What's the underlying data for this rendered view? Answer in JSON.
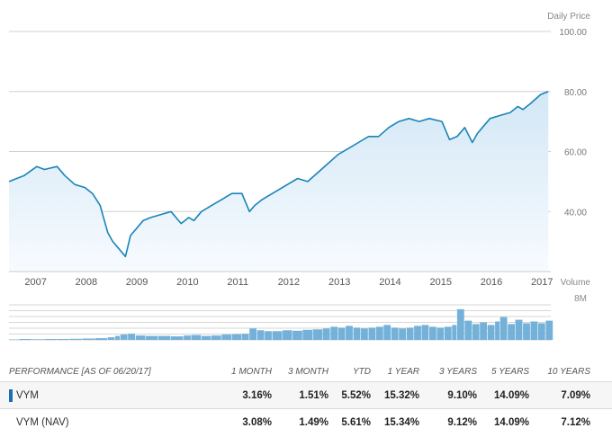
{
  "chart_data": {
    "type": "area",
    "price_label": "Daily Price",
    "price_ticks": [
      "100.00",
      "80.00",
      "60.00",
      "40.00"
    ],
    "x_ticks": [
      "2007",
      "2008",
      "2009",
      "2010",
      "2011",
      "2012",
      "2013",
      "2014",
      "2015",
      "2016",
      "2017"
    ],
    "volume_label": "Volume",
    "volume_tick": "8M",
    "ylim": [
      20,
      100
    ],
    "series": [
      {
        "x": [
          2006.8,
          2007.1,
          2007.35,
          2007.5,
          2007.75,
          2007.9,
          2008.1,
          2008.3,
          2008.45,
          2008.6,
          2008.75,
          2008.85,
          2008.95,
          2009.1,
          2009.2,
          2009.3,
          2009.45,
          2009.6,
          2009.8,
          2010.0,
          2010.2,
          2010.35,
          2010.45,
          2010.6,
          2010.8,
          2011.0,
          2011.2,
          2011.4,
          2011.55,
          2011.65,
          2011.8,
          2012.0,
          2012.3,
          2012.5,
          2012.7,
          2012.9,
          2013.1,
          2013.3,
          2013.5,
          2013.7,
          2013.9,
          2014.1,
          2014.3,
          2014.5,
          2014.7,
          2014.9,
          2015.1,
          2015.35,
          2015.5,
          2015.65,
          2015.8,
          2015.95,
          2016.05,
          2016.15,
          2016.3,
          2016.5,
          2016.7,
          2016.85,
          2016.95,
          2017.1,
          2017.3,
          2017.45
        ],
        "y": [
          50,
          52,
          55,
          54,
          55,
          52,
          49,
          48,
          46,
          42,
          33,
          30,
          28,
          25,
          32,
          34,
          37,
          38,
          39,
          40,
          36,
          38,
          37,
          40,
          42,
          44,
          46,
          46,
          40,
          42,
          44,
          46,
          49,
          51,
          50,
          53,
          56,
          59,
          61,
          63,
          65,
          65,
          68,
          70,
          71,
          70,
          71,
          70,
          64,
          65,
          68,
          63,
          66,
          68,
          71,
          72,
          73,
          75,
          74,
          76,
          79,
          80
        ]
      }
    ],
    "volume": [
      {
        "x": 2006.8,
        "v": 0.1
      },
      {
        "x": 2007.0,
        "v": 0.2
      },
      {
        "x": 2007.25,
        "v": 0.15
      },
      {
        "x": 2007.5,
        "v": 0.2
      },
      {
        "x": 2007.75,
        "v": 0.2
      },
      {
        "x": 2008.0,
        "v": 0.25
      },
      {
        "x": 2008.25,
        "v": 0.3
      },
      {
        "x": 2008.5,
        "v": 0.4
      },
      {
        "x": 2008.75,
        "v": 0.6
      },
      {
        "x": 2008.9,
        "v": 0.9
      },
      {
        "x": 2009.0,
        "v": 1.2
      },
      {
        "x": 2009.15,
        "v": 1.4
      },
      {
        "x": 2009.3,
        "v": 1.0
      },
      {
        "x": 2009.5,
        "v": 0.9
      },
      {
        "x": 2009.75,
        "v": 0.9
      },
      {
        "x": 2010.0,
        "v": 0.8
      },
      {
        "x": 2010.25,
        "v": 1.0
      },
      {
        "x": 2010.4,
        "v": 1.1
      },
      {
        "x": 2010.6,
        "v": 0.9
      },
      {
        "x": 2010.8,
        "v": 1.0
      },
      {
        "x": 2011.0,
        "v": 1.2
      },
      {
        "x": 2011.2,
        "v": 1.3
      },
      {
        "x": 2011.4,
        "v": 1.4
      },
      {
        "x": 2011.55,
        "v": 2.6
      },
      {
        "x": 2011.7,
        "v": 2.2
      },
      {
        "x": 2011.85,
        "v": 2.0
      },
      {
        "x": 2012.0,
        "v": 2.0
      },
      {
        "x": 2012.2,
        "v": 2.2
      },
      {
        "x": 2012.4,
        "v": 2.1
      },
      {
        "x": 2012.6,
        "v": 2.3
      },
      {
        "x": 2012.8,
        "v": 2.4
      },
      {
        "x": 2013.0,
        "v": 2.6
      },
      {
        "x": 2013.15,
        "v": 3.0
      },
      {
        "x": 2013.3,
        "v": 2.8
      },
      {
        "x": 2013.45,
        "v": 3.2
      },
      {
        "x": 2013.6,
        "v": 2.8
      },
      {
        "x": 2013.75,
        "v": 2.6
      },
      {
        "x": 2013.9,
        "v": 2.8
      },
      {
        "x": 2014.05,
        "v": 3.0
      },
      {
        "x": 2014.2,
        "v": 3.4
      },
      {
        "x": 2014.35,
        "v": 2.8
      },
      {
        "x": 2014.5,
        "v": 2.6
      },
      {
        "x": 2014.65,
        "v": 2.8
      },
      {
        "x": 2014.8,
        "v": 3.2
      },
      {
        "x": 2014.95,
        "v": 3.4
      },
      {
        "x": 2015.1,
        "v": 3.0
      },
      {
        "x": 2015.25,
        "v": 2.8
      },
      {
        "x": 2015.4,
        "v": 3.0
      },
      {
        "x": 2015.55,
        "v": 3.4
      },
      {
        "x": 2015.65,
        "v": 7.0
      },
      {
        "x": 2015.8,
        "v": 4.4
      },
      {
        "x": 2015.95,
        "v": 3.6
      },
      {
        "x": 2016.1,
        "v": 4.0
      },
      {
        "x": 2016.25,
        "v": 3.4
      },
      {
        "x": 2016.4,
        "v": 4.2
      },
      {
        "x": 2016.5,
        "v": 5.2
      },
      {
        "x": 2016.65,
        "v": 3.6
      },
      {
        "x": 2016.8,
        "v": 4.6
      },
      {
        "x": 2016.95,
        "v": 3.8
      },
      {
        "x": 2017.1,
        "v": 4.2
      },
      {
        "x": 2017.25,
        "v": 3.8
      },
      {
        "x": 2017.4,
        "v": 4.4
      }
    ]
  },
  "performance": {
    "header_label": "PERFORMANCE   [AS OF 06/20/17]",
    "columns": [
      "1 MONTH",
      "3 MONTH",
      "YTD",
      "1 YEAR",
      "3 YEARS",
      "5 YEARS",
      "10 YEARS"
    ],
    "rows": [
      {
        "name": "VYM",
        "values": [
          "3.16%",
          "1.51%",
          "5.52%",
          "15.32%",
          "9.10%",
          "14.09%",
          "7.09%"
        ]
      },
      {
        "name": "VYM (NAV)",
        "values": [
          "3.08%",
          "1.49%",
          "5.61%",
          "15.34%",
          "9.12%",
          "14.09%",
          "7.12%"
        ]
      }
    ]
  },
  "colors": {
    "line": "#1a84b6",
    "fill_top": "#d3e7f6",
    "fill_bottom": "#f4f9fd",
    "volume": "#74b1d9",
    "marker": "#1c6fb3"
  }
}
